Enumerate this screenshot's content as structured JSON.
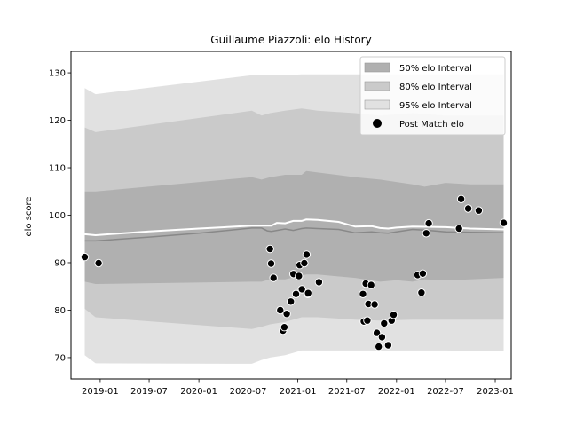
{
  "chart_data": {
    "type": "line",
    "title": "Guillaume Piazzoli: elo History",
    "xlabel": "",
    "ylabel": "elo score",
    "xlim": [
      "2018-09-15",
      "2023-03-01"
    ],
    "ylim": [
      65.5,
      134.5
    ],
    "x_ticks": [
      "2019-01",
      "2019-07",
      "2020-01",
      "2020-07",
      "2021-01",
      "2021-07",
      "2022-01",
      "2022-07",
      "2023-01"
    ],
    "y_ticks": [
      70,
      80,
      90,
      100,
      110,
      120,
      130
    ],
    "grid": false,
    "legend_placement": "upper right",
    "legend": [
      {
        "label": "50% elo Interval",
        "kind": "band",
        "color": "#b0b0b0"
      },
      {
        "label": "80% elo Interval",
        "kind": "band",
        "color": "#cacaca"
      },
      {
        "label": "95% elo Interval",
        "kind": "band",
        "color": "#e1e1e1"
      },
      {
        "label": "Post Match elo",
        "kind": "marker",
        "color": "#000000"
      }
    ],
    "colors": {
      "band95": "#e1e1e1",
      "band80": "#cacaca",
      "band50": "#b0b0b0",
      "mean": "#888888",
      "median": "#ffffff",
      "points": "#000000"
    },
    "series": [
      {
        "role": "band",
        "level": "95",
        "x": [
          "2018-11-05",
          "2018-12-15",
          "2020-07-15",
          "2020-08-20",
          "2020-09-20",
          "2020-11-15",
          "2021-01-15",
          "2021-03-15",
          "2021-08-01",
          "2021-11-01",
          "2022-03-01",
          "2022-07-01",
          "2022-10-01",
          "2023-02-01"
        ],
        "upper": [
          126.8,
          125.5,
          129.5,
          129.5,
          129.5,
          129.5,
          129.7,
          129.7,
          129.7,
          129.7,
          129.7,
          129.7,
          129.7,
          129.7
        ],
        "lower": [
          70.5,
          68.8,
          68.7,
          69.5,
          70.0,
          70.5,
          71.5,
          71.5,
          71.5,
          71.5,
          71.5,
          71.5,
          71.4,
          71.3
        ]
      },
      {
        "role": "band",
        "level": "80",
        "x": [
          "2018-11-05",
          "2018-12-15",
          "2020-07-15",
          "2020-08-20",
          "2020-09-20",
          "2020-11-15",
          "2021-01-15",
          "2021-03-15",
          "2021-08-01",
          "2021-11-01",
          "2022-03-01",
          "2022-07-01",
          "2022-10-01",
          "2023-02-01"
        ],
        "upper": [
          118.5,
          117.5,
          122.0,
          121.0,
          121.5,
          122.0,
          122.5,
          122.0,
          121.5,
          121.0,
          121.5,
          121.0,
          121.0,
          121.0
        ],
        "lower": [
          80.3,
          78.5,
          76.0,
          76.5,
          77.0,
          77.5,
          78.5,
          78.5,
          78.0,
          77.8,
          78.0,
          78.0,
          78.0,
          78.0
        ]
      },
      {
        "role": "band",
        "level": "50",
        "x": [
          "2018-11-05",
          "2018-12-15",
          "2020-07-15",
          "2020-08-20",
          "2020-09-20",
          "2020-11-15",
          "2021-01-15",
          "2021-02-01",
          "2021-03-15",
          "2021-08-01",
          "2021-11-01",
          "2022-01-01",
          "2022-03-01",
          "2022-04-15",
          "2022-07-01",
          "2022-10-01",
          "2023-02-01"
        ],
        "upper": [
          105.0,
          105.0,
          108.0,
          107.5,
          108.0,
          108.5,
          108.5,
          109.3,
          109.0,
          108.0,
          107.5,
          107.0,
          106.5,
          106.0,
          106.8,
          106.5,
          106.5
        ],
        "lower": [
          86.0,
          85.5,
          86.0,
          86.0,
          86.5,
          86.5,
          87.3,
          87.5,
          87.5,
          86.8,
          86.0,
          86.3,
          86.0,
          86.5,
          86.3,
          86.5,
          86.8
        ]
      },
      {
        "role": "line",
        "name": "mean",
        "x": [
          "2018-11-05",
          "2018-12-15",
          "2019-07-01",
          "2020-01-01",
          "2020-07-15",
          "2020-08-20",
          "2020-09-10",
          "2020-09-25",
          "2020-11-15",
          "2020-12-15",
          "2021-01-15",
          "2021-02-01",
          "2021-03-15",
          "2021-06-01",
          "2021-08-01",
          "2021-10-01",
          "2021-11-01",
          "2021-12-01",
          "2022-01-01",
          "2022-03-01",
          "2022-05-01",
          "2022-07-01",
          "2022-10-01",
          "2023-02-01"
        ],
        "values": [
          94.6,
          94.6,
          95.4,
          96.2,
          97.3,
          97.3,
          96.7,
          96.6,
          97.1,
          96.8,
          97.2,
          97.3,
          97.2,
          97.0,
          96.3,
          96.5,
          96.3,
          96.2,
          96.5,
          97.0,
          96.8,
          96.5,
          96.4,
          96.3
        ]
      },
      {
        "role": "line",
        "name": "median",
        "x": [
          "2018-11-05",
          "2018-12-15",
          "2019-07-01",
          "2020-01-01",
          "2020-07-15",
          "2020-08-20",
          "2020-09-25",
          "2020-10-15",
          "2020-11-15",
          "2020-12-15",
          "2021-01-15",
          "2021-02-01",
          "2021-03-15",
          "2021-06-01",
          "2021-08-01",
          "2021-10-01",
          "2021-11-01",
          "2021-12-01",
          "2022-01-01",
          "2022-03-01",
          "2022-07-01",
          "2022-10-01",
          "2023-02-01"
        ],
        "values": [
          96.0,
          95.8,
          96.6,
          97.2,
          97.8,
          97.8,
          97.8,
          98.4,
          98.3,
          98.8,
          98.8,
          99.1,
          99.0,
          98.6,
          97.6,
          97.7,
          97.3,
          97.2,
          97.4,
          97.6,
          97.5,
          97.2,
          97.0
        ]
      },
      {
        "role": "points",
        "name": "Post Match elo",
        "x": [
          "2018-11-05",
          "2018-12-26",
          "2020-09-20",
          "2020-09-24",
          "2020-10-03",
          "2020-10-28",
          "2020-11-07",
          "2020-11-12",
          "2020-11-21",
          "2020-12-06",
          "2020-12-16",
          "2020-12-25",
          "2021-01-05",
          "2021-01-08",
          "2021-01-16",
          "2021-01-25",
          "2021-02-02",
          "2021-02-07",
          "2021-02-08",
          "2021-03-20",
          "2021-08-30",
          "2021-09-02",
          "2021-09-09",
          "2021-09-15",
          "2021-09-19",
          "2021-09-29",
          "2021-10-12",
          "2021-10-20",
          "2021-10-27",
          "2021-11-08",
          "2021-11-16",
          "2021-12-01",
          "2021-12-14",
          "2021-12-21",
          "2022-03-20",
          "2022-04-03",
          "2022-04-08",
          "2022-04-21",
          "2022-04-30",
          "2022-08-20",
          "2022-08-28",
          "2022-09-23",
          "2022-11-01",
          "2023-02-01"
        ],
        "values": [
          91.2,
          89.9,
          92.9,
          89.8,
          86.8,
          80.0,
          75.7,
          76.4,
          79.2,
          81.8,
          87.6,
          83.4,
          87.2,
          89.5,
          84.4,
          89.9,
          91.7,
          83.4,
          83.6,
          85.9,
          83.4,
          77.6,
          85.6,
          77.8,
          81.3,
          85.3,
          81.2,
          75.2,
          72.3,
          74.3,
          77.2,
          72.6,
          77.8,
          79.0,
          87.4,
          83.7,
          87.7,
          96.2,
          98.3,
          97.2,
          103.4,
          101.4,
          101.0,
          98.4
        ]
      }
    ]
  }
}
